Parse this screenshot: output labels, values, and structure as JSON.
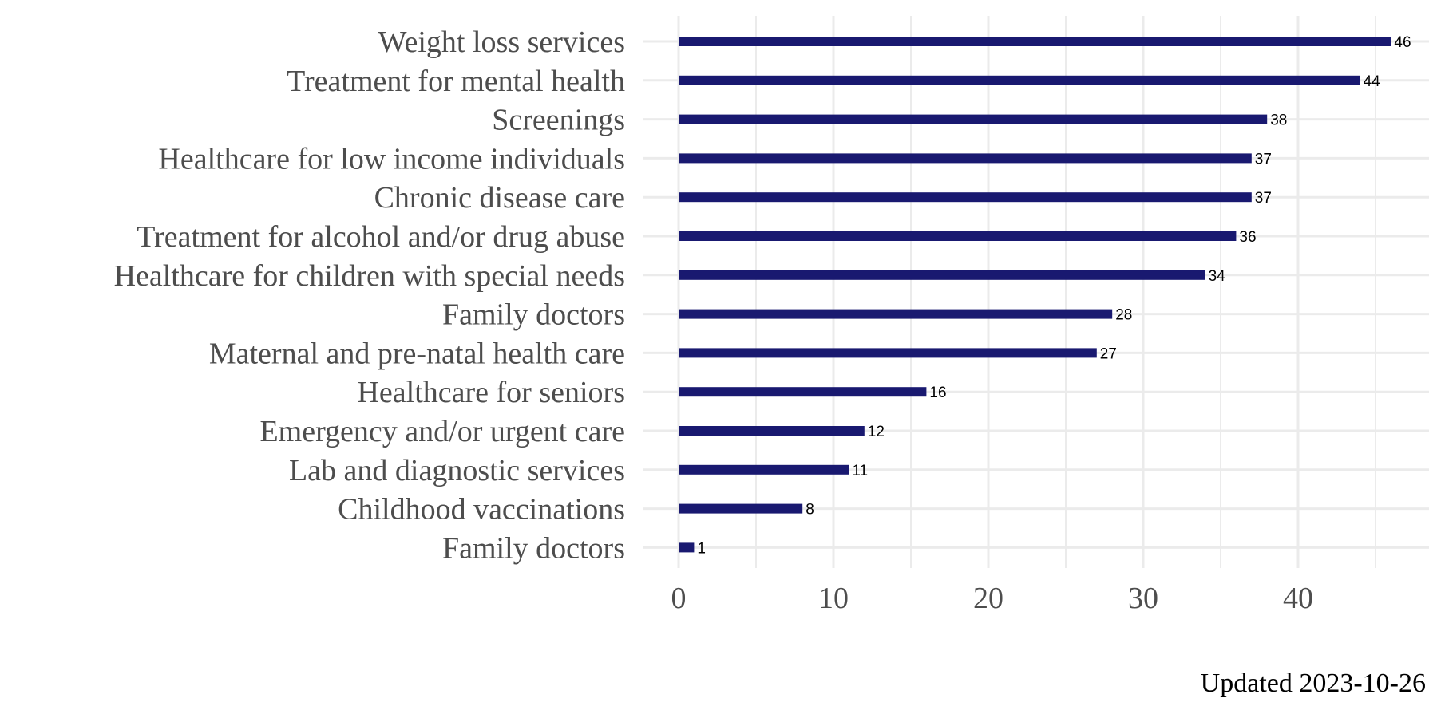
{
  "chart_data": {
    "type": "bar",
    "orientation": "horizontal",
    "categories": [
      "Weight loss services",
      "Treatment for mental health",
      "Screenings",
      "Healthcare for low income individuals",
      "Chronic disease care",
      "Treatment for alcohol and/or drug abuse",
      "Healthcare for children with special needs",
      "Family doctors",
      "Maternal and pre-natal health care",
      "Healthcare for seniors",
      "Emergency and/or urgent care",
      "Lab and diagnostic services",
      "Childhood vaccinations",
      "Family doctors"
    ],
    "values": [
      46,
      44,
      38,
      37,
      37,
      36,
      34,
      28,
      27,
      16,
      12,
      11,
      8,
      1
    ],
    "xlim": [
      0,
      48
    ],
    "x_ticks": [
      0,
      10,
      20,
      30,
      40
    ],
    "grid": true,
    "legend": "none",
    "bar_color": "#191970",
    "grid_color": "#ebebeb",
    "caption": "Updated 2023-10-26"
  }
}
